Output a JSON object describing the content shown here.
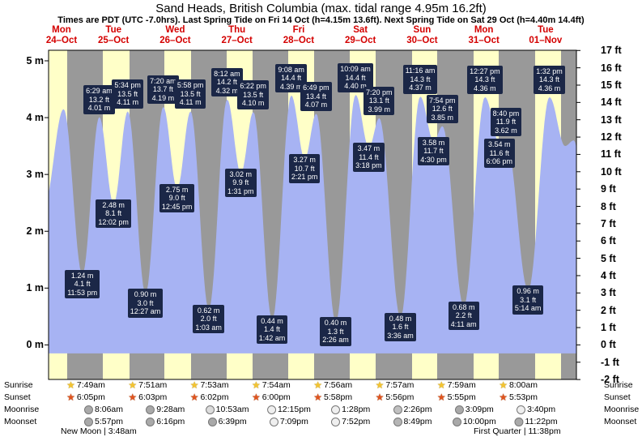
{
  "title": "Sand Heads, British Columbia (max. tidal range 4.95m 16.2ft)",
  "subtitle": "Times are PDT (UTC -7.0hrs). Last Spring Tide on Fri 14 Oct (h=4.15m 13.6ft). Next Spring Tide on Sat 29 Oct (h=4.40m 14.4ft)",
  "colors": {
    "day_band": "#ffffc8",
    "night_band": "#999999",
    "tide_fill": "#a7b3f3",
    "annotation_bg": "#1b2747",
    "annotation_text": "#ffffff",
    "day_label": "#d40000",
    "sunrise_icon": "#f4c430",
    "sunset_icon": "#e0541e",
    "plot_frame": "#000000"
  },
  "days": [
    {
      "name": "Mon",
      "date": "24–Oct"
    },
    {
      "name": "Tue",
      "date": "25–Oct"
    },
    {
      "name": "Wed",
      "date": "26–Oct"
    },
    {
      "name": "Thu",
      "date": "27–Oct"
    },
    {
      "name": "Fri",
      "date": "28–Oct"
    },
    {
      "name": "Sat",
      "date": "29–Oct"
    },
    {
      "name": "Sun",
      "date": "30–Oct"
    },
    {
      "name": "Mon",
      "date": "31–Oct"
    },
    {
      "name": "Tue",
      "date": "01–Nov"
    }
  ],
  "y_axis_left_labels": [
    "5 m",
    "4 m",
    "3 m",
    "2 m",
    "1 m",
    "0 m"
  ],
  "y_axis_left_values_m": [
    5,
    4,
    3,
    2,
    1,
    0
  ],
  "y_axis_right_labels": [
    "17 ft",
    "16 ft",
    "15 ft",
    "14 ft",
    "13 ft",
    "12 ft",
    "11 ft",
    "10 ft",
    "9 ft",
    "8 ft",
    "7 ft",
    "6 ft",
    "5 ft",
    "4 ft",
    "3 ft",
    "2 ft",
    "1 ft",
    "0 ft",
    "-1 ft",
    "-2 ft"
  ],
  "y_axis_right_values_ft": [
    17,
    16,
    15,
    14,
    13,
    12,
    11,
    10,
    9,
    8,
    7,
    6,
    5,
    4,
    3,
    2,
    1,
    0,
    -1,
    -2
  ],
  "chart_data": {
    "type": "area",
    "title": "Sand Heads, British Columbia tide heights",
    "x_unit": "hours from Mon 24 Oct 00:00 PDT",
    "x_range": [
      10.75,
      216
    ],
    "y_unit": "m",
    "y_range_m": [
      -0.61,
      5.19
    ],
    "base_level_m": -0.15,
    "legend": "blue area = tide height, yellow = daylight, gray = night",
    "tide_extremes": [
      {
        "t": 9.0,
        "h": 2.45,
        "kind": "low",
        "lines": null
      },
      {
        "t": 16.6,
        "h": 4.15,
        "kind": "high",
        "lines": null
      },
      {
        "t": 23.883,
        "h": 1.24,
        "kind": "low",
        "lines": [
          "1.24 m",
          "4.1 ft",
          "11:53 pm"
        ]
      },
      {
        "t": 30.483,
        "h": 4.01,
        "kind": "high",
        "lines": [
          "6:29 am",
          "13.2 ft",
          "4.01 m"
        ]
      },
      {
        "t": 36.033,
        "h": 2.48,
        "kind": "low",
        "lines": [
          "2.48 m",
          "8.1 ft",
          "12:02 pm"
        ]
      },
      {
        "t": 41.567,
        "h": 4.11,
        "kind": "high",
        "lines": [
          "5:34 pm",
          "13.5 ft",
          "4.11 m"
        ]
      },
      {
        "t": 48.45,
        "h": 0.9,
        "kind": "low",
        "lines": [
          "0.90 m",
          "3.0 ft",
          "12:27 am"
        ]
      },
      {
        "t": 55.333,
        "h": 4.19,
        "kind": "high",
        "lines": [
          "7:20 am",
          "13.7 ft",
          "4.19 m"
        ]
      },
      {
        "t": 60.75,
        "h": 2.75,
        "kind": "low",
        "lines": [
          "2.75 m",
          "9.0 ft",
          "12:45 pm"
        ]
      },
      {
        "t": 65.967,
        "h": 4.11,
        "kind": "high",
        "lines": [
          "5:58 pm",
          "13.5 ft",
          "4.11 m"
        ]
      },
      {
        "t": 73.05,
        "h": 0.62,
        "kind": "low",
        "lines": [
          "0.62 m",
          "2.0 ft",
          "1:03 am"
        ]
      },
      {
        "t": 80.2,
        "h": 4.32,
        "kind": "high",
        "lines": [
          "8:12 am",
          "14.2 ft",
          "4.32 m"
        ]
      },
      {
        "t": 85.517,
        "h": 3.02,
        "kind": "low",
        "lines": [
          "3.02 m",
          "9.9 ft",
          "1:31 pm"
        ]
      },
      {
        "t": 90.367,
        "h": 4.1,
        "kind": "high",
        "lines": [
          "6:22 pm",
          "13.5 ft",
          "4.10 m"
        ]
      },
      {
        "t": 97.7,
        "h": 0.44,
        "kind": "low",
        "lines": [
          "0.44 m",
          "1.4 ft",
          "1:42 am"
        ]
      },
      {
        "t": 105.133,
        "h": 4.39,
        "kind": "high",
        "lines": [
          "9:08 am",
          "14.4 ft",
          "4.39 m"
        ]
      },
      {
        "t": 110.35,
        "h": 3.27,
        "kind": "low",
        "lines": [
          "3.27 m",
          "10.7 ft",
          "2:21 pm"
        ]
      },
      {
        "t": 114.817,
        "h": 4.07,
        "kind": "high",
        "lines": [
          "6:49 pm",
          "13.4 ft",
          "4.07 m"
        ]
      },
      {
        "t": 122.433,
        "h": 0.4,
        "kind": "low",
        "lines": [
          "0.40 m",
          "1.3 ft",
          "2:26 am"
        ]
      },
      {
        "t": 130.15,
        "h": 4.4,
        "kind": "high",
        "lines": [
          "10:09 am",
          "14.4 ft",
          "4.40 m"
        ]
      },
      {
        "t": 135.3,
        "h": 3.47,
        "kind": "low",
        "lines": [
          "3.47 m",
          "11.4 ft",
          "3:18 pm"
        ]
      },
      {
        "t": 139.333,
        "h": 3.99,
        "kind": "high",
        "lines": [
          "7:20 pm",
          "13.1 ft",
          "3.99 m"
        ]
      },
      {
        "t": 147.6,
        "h": 0.48,
        "kind": "low",
        "lines": [
          "0.48 m",
          "1.6 ft",
          "3:36 am"
        ]
      },
      {
        "t": 155.267,
        "h": 4.37,
        "kind": "high",
        "lines": [
          "11:16 am",
          "14.3 ft",
          "4.37 m"
        ]
      },
      {
        "t": 160.5,
        "h": 3.58,
        "kind": "low",
        "lines": [
          "3.58 m",
          "11.7 ft",
          "4:30 pm"
        ]
      },
      {
        "t": 163.9,
        "h": 3.85,
        "kind": "high",
        "lines": [
          "7:54 pm",
          "12.6 ft",
          "3.85 m"
        ]
      },
      {
        "t": 172.183,
        "h": 0.68,
        "kind": "low",
        "lines": [
          "0.68 m",
          "2.2 ft",
          "4:11 am"
        ]
      },
      {
        "t": 180.45,
        "h": 4.36,
        "kind": "high",
        "lines": [
          "12:27 pm",
          "14.3 ft",
          "4.36 m"
        ]
      },
      {
        "t": 186.1,
        "h": 3.54,
        "kind": "low",
        "lines": [
          "3.54 m",
          "11.6 ft",
          "6:06 pm"
        ]
      },
      {
        "t": 188.667,
        "h": 3.62,
        "kind": "high",
        "lines": [
          "8:40 pm",
          "11.9 ft",
          "3.62 m"
        ]
      },
      {
        "t": 197.233,
        "h": 0.96,
        "kind": "low",
        "lines": [
          "0.96 m",
          "3.1 ft",
          "5:14 am"
        ]
      },
      {
        "t": 205.533,
        "h": 4.36,
        "kind": "high",
        "lines": [
          "1:32 pm",
          "14.3 ft",
          "4.36 m"
        ]
      },
      {
        "t": 211.6,
        "h": 3.5,
        "kind": "low",
        "lines": null
      },
      {
        "t": 215.0,
        "h": 3.6,
        "kind": "high",
        "lines": null
      },
      {
        "t": 222.0,
        "h": 1.0,
        "kind": "low",
        "lines": null
      }
    ],
    "day_night_bands": [
      {
        "start": 10.75,
        "end": 18.12,
        "type": "day"
      },
      {
        "start": 18.12,
        "end": 31.82,
        "type": "night"
      },
      {
        "start": 31.82,
        "end": 42.08,
        "type": "day"
      },
      {
        "start": 42.08,
        "end": 55.85,
        "type": "night"
      },
      {
        "start": 55.85,
        "end": 66.05,
        "type": "day"
      },
      {
        "start": 66.05,
        "end": 79.88,
        "type": "night"
      },
      {
        "start": 79.88,
        "end": 90.03,
        "type": "day"
      },
      {
        "start": 90.03,
        "end": 103.9,
        "type": "night"
      },
      {
        "start": 103.9,
        "end": 114.0,
        "type": "day"
      },
      {
        "start": 114.0,
        "end": 127.93,
        "type": "night"
      },
      {
        "start": 127.93,
        "end": 137.97,
        "type": "day"
      },
      {
        "start": 137.97,
        "end": 151.95,
        "type": "night"
      },
      {
        "start": 151.95,
        "end": 161.93,
        "type": "day"
      },
      {
        "start": 161.93,
        "end": 175.98,
        "type": "night"
      },
      {
        "start": 175.98,
        "end": 185.92,
        "type": "day"
      },
      {
        "start": 185.92,
        "end": 200.0,
        "type": "night"
      },
      {
        "start": 200.0,
        "end": 209.88,
        "type": "day"
      },
      {
        "start": 209.88,
        "end": 216.0,
        "type": "night"
      }
    ]
  },
  "astro": {
    "row_labels": [
      "Sunrise",
      "Sunset",
      "Moonrise",
      "Moonset"
    ],
    "sunrise": [
      "7:49am",
      "7:51am",
      "7:53am",
      "7:54am",
      "7:56am",
      "7:57am",
      "7:59am",
      "8:00am"
    ],
    "sunset": [
      "6:05pm",
      "6:03pm",
      "6:02pm",
      "6:00pm",
      "5:58pm",
      "5:56pm",
      "5:55pm",
      "5:53pm"
    ],
    "moonrise": [
      "8:06am",
      "9:28am",
      "10:53am",
      "12:15pm",
      "1:28pm",
      "2:26pm",
      "3:09pm",
      "3:40pm"
    ],
    "moonset": [
      "5:57pm",
      "6:16pm",
      "6:39pm",
      "7:09pm",
      "7:52pm",
      "8:49pm",
      "10:00pm",
      "11:22pm"
    ],
    "moonrise_icon_fills": [
      "#a9a9a9",
      "#a9a9a9",
      "#dcdcdc",
      "#efefef",
      "#efefef",
      "#c0c0c0",
      "#a9a9a9",
      "#efefef"
    ],
    "moonset_icon_fills": [
      "#a9a9a9",
      "#a9a9a9",
      "#a9a9a9",
      "#efefef",
      "#efefef",
      "#b5b5b5",
      "#a9a9a9",
      "#a9a9a9"
    ],
    "notes": [
      "New Moon | 3:48am",
      "First Quarter | 11:38pm"
    ]
  }
}
